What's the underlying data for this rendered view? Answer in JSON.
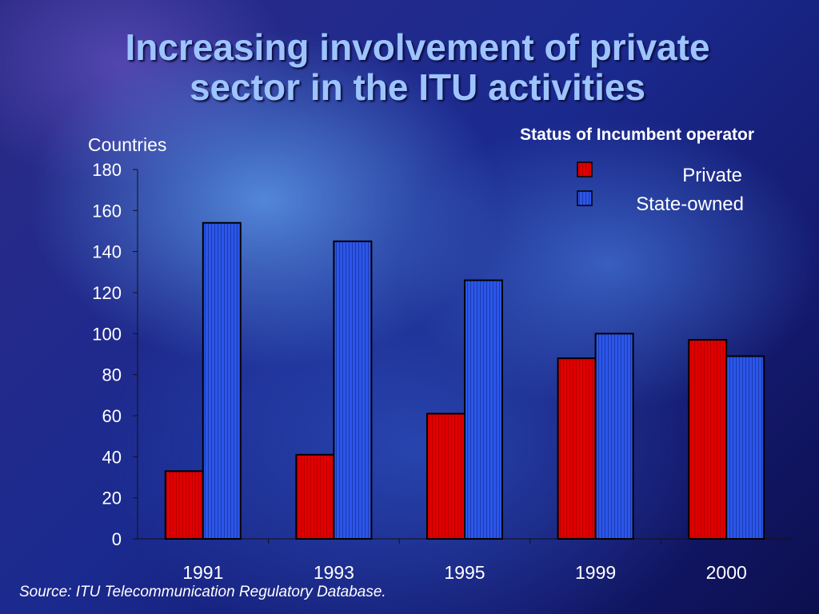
{
  "slide": {
    "title_line1": "Increasing involvement of private",
    "title_line2": "sector in the ITU activities",
    "source": "Source: ITU Telecommunication Regulatory Database."
  },
  "colors": {
    "private": "#e00000",
    "state_owned": "#2a52e0",
    "title": "#9ec4ff",
    "text": "#ffffff"
  },
  "chart_data": {
    "type": "bar",
    "title": "Status of Incumbent operator",
    "ylabel": "Countries",
    "xlabel": "",
    "categories": [
      "1991",
      "1993",
      "1995",
      "1999",
      "2000"
    ],
    "series": [
      {
        "name": "Private",
        "values": [
          33,
          41,
          61,
          88,
          97
        ]
      },
      {
        "name": "State-owned",
        "values": [
          154,
          145,
          126,
          100,
          89
        ]
      }
    ],
    "ylim": [
      0,
      180
    ],
    "yticks": [
      "0",
      "20",
      "40",
      "60",
      "80",
      "100",
      "120",
      "140",
      "160",
      "180"
    ],
    "grid": false,
    "legend": "top-right"
  }
}
